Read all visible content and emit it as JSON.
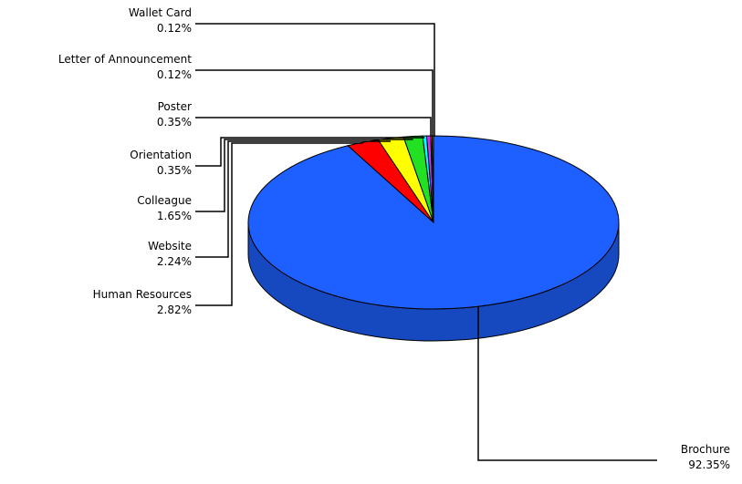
{
  "chart_data": {
    "type": "pie",
    "title": "",
    "style": "3d",
    "series": [
      {
        "name": "Brochure",
        "value": 92.35,
        "label": "92.35%",
        "color": "#1e5fff",
        "side_color": "#1648c0"
      },
      {
        "name": "Human Resources",
        "value": 2.82,
        "label": "2.82%",
        "color": "#ff0000",
        "side_color": "#b80000"
      },
      {
        "name": "Website",
        "value": 2.24,
        "label": "2.24%",
        "color": "#ffff00",
        "side_color": "#b8b800"
      },
      {
        "name": "Colleague",
        "value": 1.65,
        "label": "1.65%",
        "color": "#22e022",
        "side_color": "#16a016"
      },
      {
        "name": "Orientation",
        "value": 0.35,
        "label": "0.35%",
        "color": "#00ffff",
        "side_color": "#00b8b8"
      },
      {
        "name": "Poster",
        "value": 0.35,
        "label": "0.35%",
        "color": "#cc33ff",
        "side_color": "#9020b8"
      },
      {
        "name": "Letter of Announcement",
        "value": 0.12,
        "label": "0.12%",
        "color": "#ff6600",
        "side_color": "#b84800"
      },
      {
        "name": "Wallet Card",
        "value": 0.12,
        "label": "0.12%",
        "color": "#808080",
        "side_color": "#5a5a5a"
      }
    ]
  }
}
